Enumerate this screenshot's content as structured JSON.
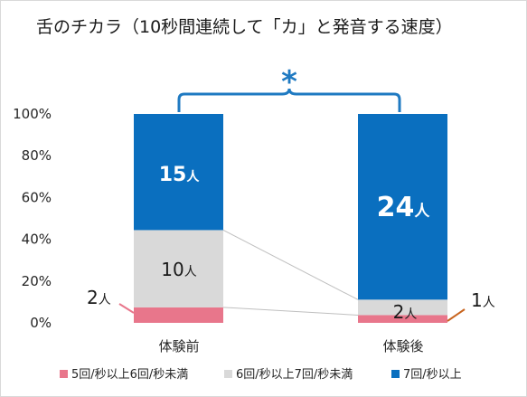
{
  "chart_data": {
    "type": "bar",
    "stacked": true,
    "title": "舌のチカラ（10秒間連続して「カ」と発音する速度）",
    "categories": [
      "体験前",
      "体験後"
    ],
    "ylim": [
      0,
      100
    ],
    "ytick_labels": [
      "0%",
      "20%",
      "40%",
      "60%",
      "80%",
      "100%"
    ],
    "grid": false,
    "legend_position": "bottom",
    "series": [
      {
        "name": "5回/秒以上6回/秒未満",
        "color": "#e8768b",
        "values": [
          7.4,
          3.7
        ],
        "labels": [
          "2人",
          "1人"
        ],
        "label_color": "#1a1a1a"
      },
      {
        "name": "6回/秒以上7回/秒未満",
        "color": "#d9d9d9",
        "values": [
          37.0,
          7.4
        ],
        "labels": [
          "10人",
          "2人"
        ],
        "label_color": "#1a1a1a"
      },
      {
        "name": "7回/秒以上",
        "color": "#0a6fbf",
        "values": [
          55.6,
          88.9
        ],
        "labels": [
          "15人",
          "24人"
        ],
        "label_color": "#ffffff"
      }
    ],
    "significance_marker": "*",
    "bracket_color": "#1f7ac2"
  }
}
